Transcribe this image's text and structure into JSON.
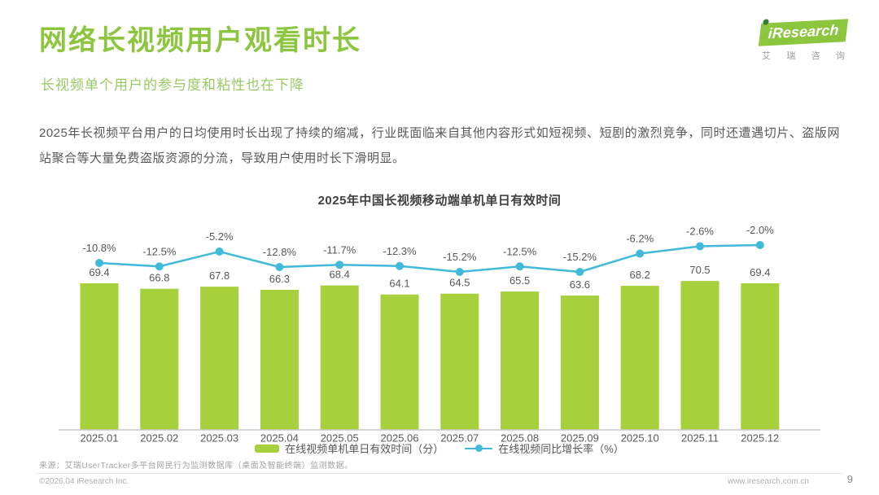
{
  "header": {
    "title": "网络长视频用户观看时长",
    "subtitle": "长视频单个用户的参与度和粘性也在下降",
    "logo": {
      "brand": "iResearch",
      "brand_cn": "艾瑞咨询"
    }
  },
  "intro_text": "2025年长视频平台用户的日均使用时长出现了持续的缩减，行业既面临来自其他内容形式如短视频、短剧的激烈竞争，同时还遭遇切片、盗版网站聚合等大量免费盗版资源的分流，导致用户使用时长下滑明显。",
  "chart_data": {
    "type": "bar",
    "title": "2025年中国长视频移动端单机单日有效时间",
    "categories": [
      "2025.01",
      "2025.02",
      "2025.03",
      "2025.04",
      "2025.05",
      "2025.06",
      "2025.07",
      "2025.08",
      "2025.09",
      "2025.10",
      "2025.11",
      "2025.12"
    ],
    "series": [
      {
        "name": "在线视频单机单日有效时间（分）",
        "type": "bar",
        "color": "#a6d03c",
        "values": [
          69.4,
          66.8,
          67.8,
          66.3,
          68.4,
          64.1,
          64.5,
          65.5,
          63.6,
          68.2,
          70.5,
          69.4
        ]
      },
      {
        "name": "在线视频同比增长率（%）",
        "type": "line",
        "color": "#41b9d9",
        "values": [
          -10.8,
          -12.5,
          -5.2,
          -12.8,
          -11.7,
          -12.3,
          -15.2,
          -12.5,
          -15.2,
          -6.2,
          -2.6,
          -2.0
        ],
        "labels": [
          "-10.8%",
          "-12.5%",
          "-5.2%",
          "-12.8%",
          "-11.7%",
          "-12.3%",
          "-15.2%",
          "-12.5%",
          "-15.2%",
          "-6.2%",
          "-2.6%",
          "-2.0%"
        ]
      }
    ],
    "xlabel": "",
    "ylabel": "",
    "bar_axis_start": 0,
    "grid": false,
    "value_labels_shown": true,
    "legend_position": "bottom",
    "label_color": "#595757",
    "axis_line_color": "#c9c9c9"
  },
  "footer": {
    "source": "来源：艾瑞UserTracker多平台网民行为监测数据库（桌面及智能终端）监测数据。",
    "copyright": "©2026.04 iResearch Inc.",
    "website": "www.iresearch.com.cn",
    "page_number": "9"
  }
}
